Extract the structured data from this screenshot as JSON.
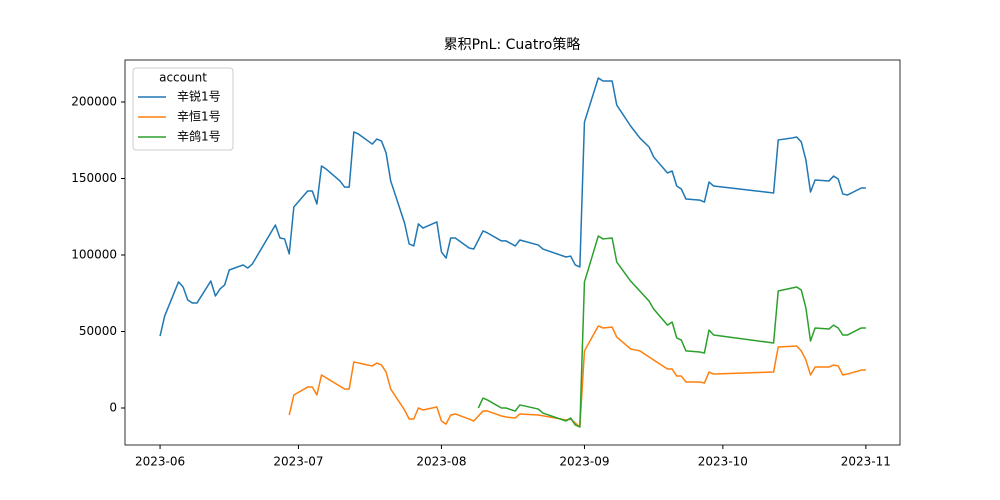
{
  "chart_data": {
    "type": "line",
    "title": "累积PnL: Cuatro策略",
    "legend_title": "account",
    "legend_loc": "upper left",
    "grid": false,
    "xlim": [
      19501.4,
      19669.4
    ],
    "xticks": [
      {
        "value": 19509,
        "label": "2023-06"
      },
      {
        "value": 19539,
        "label": "2023-07"
      },
      {
        "value": 19570,
        "label": "2023-08"
      },
      {
        "value": 19601,
        "label": "2023-09"
      },
      {
        "value": 19631,
        "label": "2023-10"
      },
      {
        "value": 19662,
        "label": "2023-11"
      }
    ],
    "ylim": [
      -24180,
      227450
    ],
    "yticks": [
      0,
      50000,
      100000,
      150000,
      200000
    ],
    "series": [
      {
        "name": "辛锐1号",
        "color": "#1f77b4",
        "x": [
          19509,
          19510,
          19513,
          19514,
          19515,
          19516,
          19517,
          19520,
          19521,
          19522,
          19523,
          19524,
          19527,
          19528,
          19529,
          19534,
          19535,
          19536,
          19537,
          19538,
          19541,
          19542,
          19543,
          19544,
          19545,
          19548,
          19549,
          19550,
          19551,
          19552,
          19555,
          19556,
          19557,
          19558,
          19559,
          19562,
          19563,
          19564,
          19565,
          19566,
          19569,
          19570,
          19571,
          19572,
          19573,
          19576,
          19577,
          19579,
          19580,
          19583,
          19584,
          19586,
          19587,
          19591,
          19592,
          19597,
          19598,
          19599,
          19600,
          19601,
          19604,
          19605,
          19607,
          19608,
          19611,
          19613,
          19615,
          19616,
          19619,
          19620,
          19621,
          19622,
          19623,
          19626,
          19627,
          19628,
          19629,
          19642,
          19643,
          19646,
          19647,
          19648,
          19649,
          19650,
          19651,
          19654,
          19655,
          19656,
          19657,
          19658,
          19661,
          19662
        ],
        "values": [
          47000,
          60100,
          82400,
          79100,
          70600,
          68600,
          68600,
          83000,
          73200,
          77800,
          80400,
          90200,
          93500,
          91500,
          94100,
          119600,
          111100,
          110500,
          100700,
          131400,
          141800,
          141800,
          133300,
          158200,
          156200,
          148400,
          144400,
          144400,
          180400,
          179100,
          172500,
          175800,
          174500,
          166700,
          148400,
          120900,
          107200,
          105900,
          120300,
          117600,
          121600,
          102000,
          98000,
          111100,
          111100,
          104600,
          103900,
          115700,
          114400,
          109200,
          109200,
          105900,
          109800,
          106500,
          103900,
          98700,
          99300,
          93500,
          92200,
          186900,
          215700,
          213700,
          213700,
          198000,
          184300,
          176500,
          170600,
          164100,
          153600,
          154900,
          145100,
          143100,
          136600,
          135900,
          134600,
          147700,
          145100,
          140500,
          175200,
          176500,
          177100,
          173900,
          162100,
          141200,
          149000,
          148400,
          151600,
          149700,
          139900,
          139200,
          143800,
          143800
        ]
      },
      {
        "name": "辛恒1号",
        "color": "#ff7f0e",
        "x": [
          19537,
          19538,
          19541,
          19542,
          19543,
          19544,
          19549,
          19550,
          19551,
          19554,
          19555,
          19556,
          19557,
          19558,
          19559,
          19562,
          19563,
          19564,
          19565,
          19566,
          19569,
          19570,
          19571,
          19572,
          19573,
          19576,
          19577,
          19579,
          19580,
          19583,
          19584,
          19586,
          19587,
          19591,
          19597,
          19598,
          19600,
          19601,
          19604,
          19605,
          19607,
          19608,
          19611,
          19613,
          19616,
          19619,
          19620,
          19621,
          19622,
          19623,
          19626,
          19627,
          19628,
          19629,
          19642,
          19643,
          19647,
          19648,
          19649,
          19650,
          19651,
          19654,
          19655,
          19656,
          19657,
          19658,
          19661,
          19662
        ],
        "values": [
          -4600,
          8500,
          13700,
          13700,
          8500,
          21600,
          12400,
          12400,
          30100,
          28100,
          27500,
          29400,
          28100,
          23500,
          12400,
          -1300,
          -7200,
          -7200,
          0,
          -1300,
          650,
          -8500,
          -10500,
          -4600,
          -3900,
          -7200,
          -8500,
          -2000,
          -2000,
          -5200,
          -5900,
          -6500,
          -3900,
          -4600,
          -7800,
          -7200,
          -12400,
          37300,
          53600,
          52300,
          52900,
          46400,
          38600,
          37300,
          31400,
          25500,
          25500,
          20900,
          20900,
          17000,
          17000,
          16300,
          23500,
          22200,
          23500,
          39900,
          40500,
          37300,
          31400,
          21600,
          26800,
          26800,
          28100,
          27500,
          21600,
          22200,
          24800,
          24800
        ]
      },
      {
        "name": "辛鸽1号",
        "color": "#2ca02c",
        "x": [
          19578,
          19579,
          19580,
          19583,
          19584,
          19586,
          19587,
          19591,
          19592,
          19597,
          19598,
          19599,
          19600,
          19601,
          19604,
          19605,
          19607,
          19608,
          19611,
          19613,
          19615,
          19616,
          19619,
          19620,
          19621,
          19622,
          19623,
          19626,
          19627,
          19628,
          19629,
          19642,
          19643,
          19647,
          19648,
          19649,
          19650,
          19651,
          19654,
          19655,
          19656,
          19657,
          19658,
          19661,
          19662
        ],
        "values": [
          0,
          6500,
          5200,
          0,
          0,
          -2000,
          2000,
          -700,
          -3300,
          -8500,
          -6500,
          -11100,
          -12400,
          82400,
          112400,
          110500,
          111100,
          95400,
          83000,
          76500,
          69900,
          64700,
          54200,
          56200,
          45800,
          44400,
          37300,
          36600,
          35900,
          51000,
          47700,
          42500,
          76500,
          79100,
          77100,
          65400,
          43800,
          52300,
          51600,
          54200,
          52300,
          47700,
          47700,
          52300,
          52300
        ]
      }
    ]
  }
}
